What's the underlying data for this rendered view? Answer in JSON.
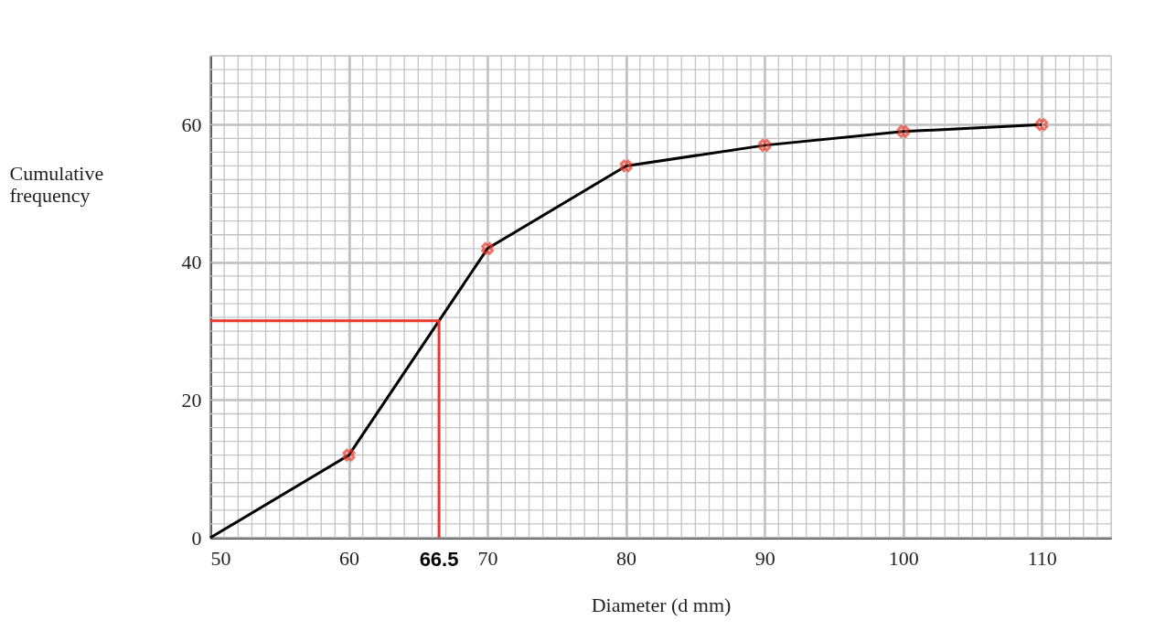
{
  "chart_data": {
    "type": "line",
    "xlabel": "Diameter (d mm)",
    "ylabel": "Cumulative frequency",
    "x": [
      50,
      60,
      70,
      80,
      90,
      100,
      110
    ],
    "series": [
      {
        "color": "#000000",
        "marker": "none",
        "values": [
          0,
          12,
          42,
          54,
          57,
          59,
          60
        ]
      },
      {
        "type": "scatter",
        "color": "#e8392a",
        "marker": "cross",
        "x": [
          60,
          70,
          80,
          90,
          100,
          110
        ],
        "values": [
          12,
          42,
          54,
          57,
          59,
          60
        ]
      },
      {
        "type": "line",
        "color": "#e8392a",
        "marker": "none",
        "x": [
          50,
          66.5,
          66.5
        ],
        "values": [
          31.5,
          31.5,
          0
        ]
      }
    ],
    "annotations": [
      {
        "text": "66.5",
        "x": 66.5,
        "y": 0
      }
    ],
    "xlim": [
      50,
      115
    ],
    "xticks": [
      50,
      60,
      70,
      80,
      90,
      100,
      110
    ],
    "ylim": [
      0,
      70
    ],
    "yticks": [
      0,
      20,
      40,
      60
    ],
    "grid": true
  }
}
